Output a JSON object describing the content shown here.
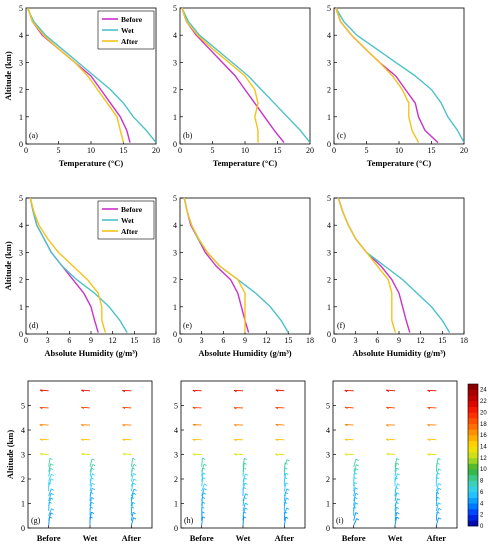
{
  "figure": {
    "colors": {
      "Before": "#c832c8",
      "Wet": "#4cc2c8",
      "After": "#f5c21b"
    },
    "legend_labels": [
      "Before",
      "Wet",
      "After"
    ]
  },
  "chart_data": [
    {
      "type": "line",
      "panel_label": "(a)",
      "xlabel": "Temperature (°C)",
      "ylabel": "Altitude (km)",
      "xlim": [
        0,
        20
      ],
      "ylim": [
        0,
        5
      ],
      "xticks": [
        "0",
        "5",
        "10",
        "15",
        "20"
      ],
      "yticks": [
        "0",
        "1",
        "2",
        "3",
        "4",
        "5"
      ],
      "legend": "top-right",
      "series": [
        {
          "name": "Before",
          "x": [
            16,
            15.5,
            14.5,
            13,
            11.5,
            10,
            7.5,
            5,
            2.5,
            1,
            0.3
          ],
          "y": [
            0.05,
            0.5,
            1.0,
            1.5,
            2.0,
            2.5,
            3.0,
            3.5,
            4.0,
            4.5,
            5.0
          ]
        },
        {
          "name": "Wet",
          "x": [
            20,
            18.5,
            16.5,
            15,
            13,
            10.5,
            8,
            5.5,
            3,
            1.2,
            0.2
          ],
          "y": [
            0.05,
            0.5,
            1.0,
            1.5,
            2.0,
            2.5,
            3.0,
            3.5,
            4.0,
            4.5,
            5.0
          ]
        },
        {
          "name": "After",
          "x": [
            15,
            14.5,
            14,
            12.5,
            11,
            9.5,
            7.5,
            5,
            2.7,
            1,
            0.3
          ],
          "y": [
            0.05,
            0.5,
            1.0,
            1.5,
            2.0,
            2.5,
            3.0,
            3.5,
            4.0,
            4.5,
            5.0
          ]
        }
      ]
    },
    {
      "type": "line",
      "panel_label": "(b)",
      "xlabel": "Temperature (°C)",
      "ylabel": "",
      "xlim": [
        0,
        20
      ],
      "ylim": [
        0,
        5
      ],
      "xticks": [
        "0",
        "5",
        "10",
        "15",
        "20"
      ],
      "yticks": [
        "0",
        "1",
        "2",
        "3",
        "4",
        "5"
      ],
      "series": [
        {
          "name": "Before",
          "x": [
            16,
            14.5,
            13,
            11.5,
            10,
            8.5,
            6.5,
            4.5,
            2.5,
            1,
            0.3
          ],
          "y": [
            0.05,
            0.5,
            1.0,
            1.5,
            2.0,
            2.5,
            3.0,
            3.5,
            4.0,
            4.5,
            5.0
          ]
        },
        {
          "name": "Wet",
          "x": [
            20,
            18.5,
            16.5,
            14.5,
            12.5,
            10.5,
            8,
            5.5,
            3,
            1.3,
            0.3
          ],
          "y": [
            0.05,
            0.5,
            1.0,
            1.5,
            2.0,
            2.5,
            3.0,
            3.5,
            4.0,
            4.5,
            5.0
          ]
        },
        {
          "name": "After",
          "x": [
            12,
            12,
            11.5,
            12,
            11.5,
            10,
            7.5,
            5,
            2.7,
            1,
            0.3
          ],
          "y": [
            0.05,
            0.5,
            1.0,
            1.5,
            2.0,
            2.5,
            3.0,
            3.5,
            4.0,
            4.5,
            5.0
          ]
        }
      ]
    },
    {
      "type": "line",
      "panel_label": "(c)",
      "xlabel": "Temperature (°C)",
      "ylabel": "",
      "xlim": [
        0,
        20
      ],
      "ylim": [
        0,
        5
      ],
      "xticks": [
        "0",
        "5",
        "10",
        "15",
        "20"
      ],
      "yticks": [
        "0",
        "1",
        "2",
        "3",
        "4",
        "5"
      ],
      "series": [
        {
          "name": "Before",
          "x": [
            16,
            14,
            13,
            12.5,
            11,
            9.5,
            7,
            4.8,
            2.7,
            1,
            0.3
          ],
          "y": [
            0.05,
            0.5,
            1.0,
            1.5,
            2.0,
            2.5,
            3.0,
            3.5,
            4.0,
            4.5,
            5.0
          ]
        },
        {
          "name": "Wet",
          "x": [
            20,
            19,
            17.5,
            16.5,
            15,
            12.5,
            9.5,
            6.5,
            3.5,
            1.5,
            0.3
          ],
          "y": [
            0.05,
            0.5,
            1.0,
            1.5,
            2.0,
            2.5,
            3.0,
            3.5,
            4.0,
            4.5,
            5.0
          ]
        },
        {
          "name": "After",
          "x": [
            13,
            12,
            11.5,
            11.5,
            10.5,
            9,
            7,
            4.8,
            2.7,
            1,
            0.3
          ],
          "y": [
            0.05,
            0.5,
            1.0,
            1.5,
            2.0,
            2.5,
            3.0,
            3.5,
            4.0,
            4.5,
            5.0
          ]
        }
      ]
    },
    {
      "type": "line",
      "panel_label": "(d)",
      "xlabel": "Absolute Humidity (g/m³)",
      "ylabel": "Altitude (km)",
      "xlim": [
        0,
        18
      ],
      "ylim": [
        0,
        5
      ],
      "xticks": [
        "0",
        "3",
        "6",
        "9",
        "12",
        "15",
        "18"
      ],
      "yticks": [
        "0",
        "1",
        "2",
        "3",
        "4",
        "5"
      ],
      "legend": "top-right",
      "series": [
        {
          "name": "Before",
          "x": [
            10,
            9.5,
            9,
            8,
            6.5,
            5,
            3.5,
            2.5,
            1.5,
            1,
            0.6
          ],
          "y": [
            0.05,
            0.5,
            1.0,
            1.5,
            2.0,
            2.5,
            3.0,
            3.5,
            4.0,
            4.5,
            5.0
          ]
        },
        {
          "name": "Wet",
          "x": [
            14,
            13,
            11.5,
            9.5,
            7,
            5,
            3.5,
            2.5,
            1.5,
            1,
            0.6
          ],
          "y": [
            0.05,
            0.5,
            1.0,
            1.5,
            2.0,
            2.5,
            3.0,
            3.5,
            4.0,
            4.5,
            5.0
          ]
        },
        {
          "name": "After",
          "x": [
            11,
            10.5,
            10.5,
            10,
            8.5,
            6.5,
            4.5,
            3,
            1.8,
            1.1,
            0.6
          ],
          "y": [
            0.05,
            0.5,
            1.0,
            1.5,
            2.0,
            2.5,
            3.0,
            3.5,
            4.0,
            4.5,
            5.0
          ]
        }
      ]
    },
    {
      "type": "line",
      "panel_label": "(e)",
      "xlabel": "Absolute Humidity (g/m³)",
      "ylabel": "",
      "xlim": [
        0,
        18
      ],
      "ylim": [
        0,
        5
      ],
      "xticks": [
        "0",
        "3",
        "6",
        "9",
        "12",
        "15",
        "18"
      ],
      "yticks": [
        "0",
        "1",
        "2",
        "3",
        "4",
        "5"
      ],
      "series": [
        {
          "name": "Before",
          "x": [
            9.5,
            9,
            8.5,
            8,
            7,
            5,
            3.5,
            2.5,
            1.5,
            1,
            0.6
          ],
          "y": [
            0.05,
            0.5,
            1.0,
            1.5,
            2.0,
            2.5,
            3.0,
            3.5,
            4.0,
            4.5,
            5.0
          ]
        },
        {
          "name": "Wet",
          "x": [
            15,
            14,
            12.5,
            10.5,
            8,
            5.5,
            3.8,
            2.5,
            1.6,
            1,
            0.6
          ],
          "y": [
            0.05,
            0.5,
            1.0,
            1.5,
            2.0,
            2.5,
            3.0,
            3.5,
            4.0,
            4.5,
            5.0
          ]
        },
        {
          "name": "After",
          "x": [
            9,
            9,
            9,
            9,
            8,
            5.5,
            3.8,
            2.6,
            1.6,
            1,
            0.6
          ],
          "y": [
            0.05,
            0.5,
            1.0,
            1.5,
            2.0,
            2.5,
            3.0,
            3.5,
            4.0,
            4.5,
            5.0
          ]
        }
      ]
    },
    {
      "type": "line",
      "panel_label": "(f)",
      "xlabel": "Absolute Humidity (g/m³)",
      "ylabel": "",
      "xlim": [
        0,
        18
      ],
      "ylim": [
        0,
        5
      ],
      "xticks": [
        "0",
        "3",
        "6",
        "9",
        "12",
        "15",
        "18"
      ],
      "yticks": [
        "0",
        "1",
        "2",
        "3",
        "4",
        "5"
      ],
      "series": [
        {
          "name": "Before",
          "x": [
            10.5,
            10,
            9.5,
            9,
            8,
            6.5,
            4.5,
            3,
            2,
            1.2,
            0.6
          ],
          "y": [
            0.05,
            0.5,
            1.0,
            1.5,
            2.0,
            2.5,
            3.0,
            3.5,
            4.0,
            4.5,
            5.0
          ]
        },
        {
          "name": "Wet",
          "x": [
            16,
            15,
            13.5,
            11.5,
            9.5,
            7,
            4.5,
            3,
            2,
            1.2,
            0.6
          ],
          "y": [
            0.05,
            0.5,
            1.0,
            1.5,
            2.0,
            2.5,
            3.0,
            3.5,
            4.0,
            4.5,
            5.0
          ]
        },
        {
          "name": "After",
          "x": [
            8.5,
            8,
            8,
            8,
            7.5,
            6,
            4.5,
            3,
            2,
            1.2,
            0.6
          ],
          "y": [
            0.05,
            0.5,
            1.0,
            1.5,
            2.0,
            2.5,
            3.0,
            3.5,
            4.0,
            4.5,
            5.0
          ]
        }
      ]
    },
    {
      "type": "scatter",
      "panel_label": "(g)",
      "ylabel": "Altitude (km)",
      "ylim": [
        0,
        6
      ],
      "categories": [
        "Before",
        "Wet",
        "After"
      ],
      "yticks": [
        "0",
        "1",
        "2",
        "3",
        "4",
        "5"
      ],
      "levels": [
        0.1,
        0.3,
        0.5,
        0.7,
        0.9,
        1.1,
        1.3,
        1.5,
        1.7,
        1.9,
        2.1,
        2.3,
        2.5,
        3.0,
        3.6,
        4.2,
        4.9,
        5.6
      ],
      "wind_speed": [
        4,
        4,
        5,
        5,
        5,
        5,
        5,
        6,
        6,
        6,
        7,
        8,
        8,
        13,
        15,
        17,
        19,
        21
      ]
    },
    {
      "type": "scatter",
      "panel_label": "(h)",
      "ylabel": "",
      "ylim": [
        0,
        6
      ],
      "categories": [
        "Before",
        "Wet",
        "After"
      ],
      "yticks": [
        "0",
        "1",
        "2",
        "3",
        "4",
        "5"
      ],
      "levels": [
        0.1,
        0.3,
        0.5,
        0.7,
        0.9,
        1.1,
        1.3,
        1.5,
        1.7,
        1.9,
        2.1,
        2.3,
        2.5,
        3.0,
        3.6,
        4.2,
        4.9,
        5.6
      ],
      "wind_speed": [
        4,
        4,
        5,
        5,
        5,
        5,
        5,
        6,
        6,
        6,
        7,
        8,
        8,
        13,
        15,
        17,
        19,
        21
      ]
    },
    {
      "type": "scatter",
      "panel_label": "(i)",
      "ylabel": "",
      "ylim": [
        0,
        6
      ],
      "categories": [
        "Before",
        "Wet",
        "After"
      ],
      "yticks": [
        "0",
        "1",
        "2",
        "3",
        "4",
        "5"
      ],
      "levels": [
        0.1,
        0.3,
        0.5,
        0.7,
        0.9,
        1.1,
        1.3,
        1.5,
        1.7,
        1.9,
        2.1,
        2.3,
        2.5,
        3.0,
        3.6,
        4.2,
        4.9,
        5.6
      ],
      "wind_speed": [
        4,
        4,
        5,
        5,
        5,
        5,
        5,
        6,
        6,
        6,
        7,
        8,
        8,
        13,
        15,
        17,
        19,
        21
      ]
    }
  ],
  "colorbar": {
    "ticks": [
      "0",
      "2",
      "4",
      "6",
      "8",
      "10",
      "12",
      "14",
      "16",
      "18",
      "20",
      "22",
      "24"
    ],
    "range": [
      0,
      25
    ]
  }
}
